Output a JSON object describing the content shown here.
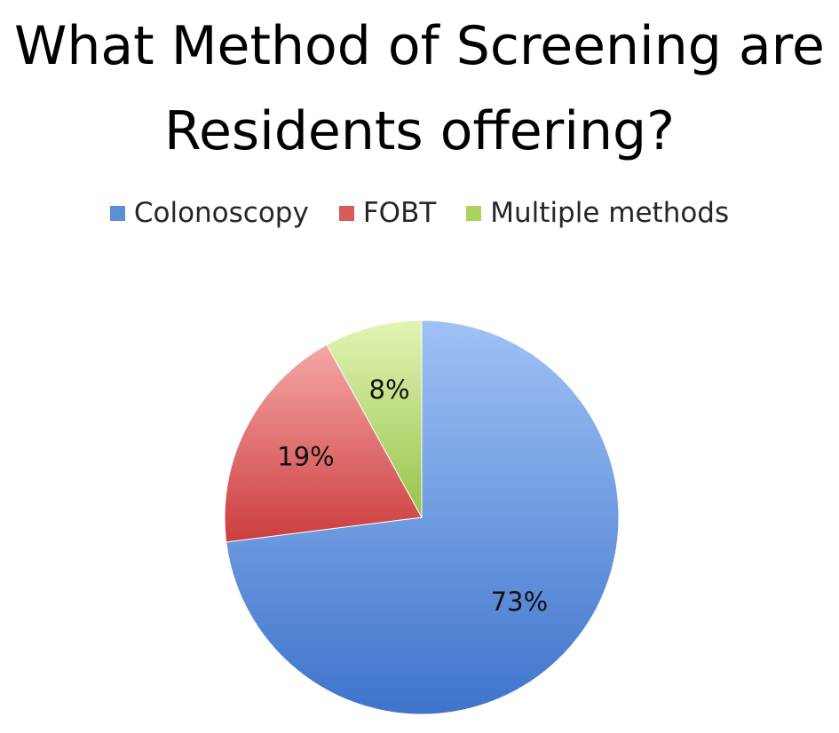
{
  "chart_data": {
    "type": "pie",
    "title_lines": [
      "What Method of Screening are",
      "Residents offering?"
    ],
    "categories": [
      "Colonoscopy",
      "FOBT",
      "Multiple methods"
    ],
    "values": [
      73,
      19,
      8
    ],
    "data_labels": [
      "73%",
      "19%",
      "8%"
    ],
    "colors": [
      "#5b8fd9",
      "#d95b5b",
      "#a9d45b"
    ],
    "legend": "top",
    "start": "12 o'clock",
    "direction": "clockwise"
  }
}
